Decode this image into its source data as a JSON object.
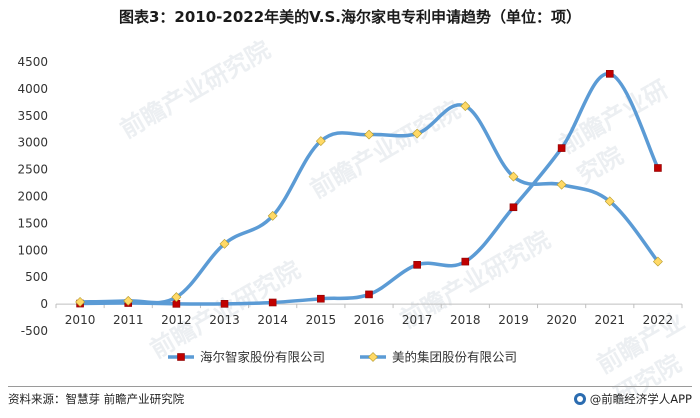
{
  "title": "图表3：2010-2022年美的V.S.海尔家电专利申请趋势（单位：项）",
  "source": "资料来源：智慧芽 前瞻产业研究院",
  "brand": "@前瞻经济学人APP",
  "watermark_text": "前瞻产业研究院",
  "colors": {
    "line": "#5b9bd5",
    "series1_marker": "#c00000",
    "series2_marker": "#ffd966"
  },
  "chart_data": {
    "type": "line",
    "categories": [
      "2010",
      "2011",
      "2012",
      "2013",
      "2014",
      "2015",
      "2016",
      "2017",
      "2018",
      "2019",
      "2020",
      "2021",
      "2022"
    ],
    "yticks": [
      "-500",
      "0",
      "500",
      "1000",
      "1500",
      "2000",
      "2500",
      "3000",
      "3500",
      "4000",
      "4500"
    ],
    "ylim": [
      -500,
      4500
    ],
    "legend_position": "bottom",
    "grid": false,
    "series": [
      {
        "name": "海尔智家股份有限公司",
        "marker": "square",
        "values": [
          10,
          20,
          5,
          5,
          30,
          100,
          180,
          730,
          790,
          1800,
          2900,
          4280,
          2530
        ]
      },
      {
        "name": "美的集团股份有限公司",
        "marker": "diamond",
        "values": [
          40,
          60,
          130,
          1120,
          1640,
          3030,
          3150,
          3170,
          3680,
          2370,
          2220,
          1910,
          790
        ]
      }
    ]
  }
}
